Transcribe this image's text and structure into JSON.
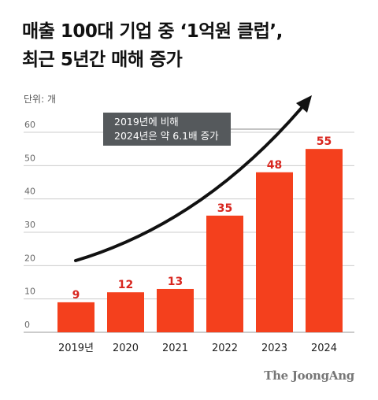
{
  "title_lines": [
    "매출 100대 기업 중 ‘1억원 클럽’,",
    "최근 5년간 매해 증가"
  ],
  "unit_label": "단위: 개",
  "annotation_lines": [
    "2019년에 비해",
    "2024년은 약 6.1배 증가"
  ],
  "credit": "The JoongAng",
  "colors": {
    "bar": "#f4401d",
    "value_label": "#d8261f",
    "grid": "#cccccc",
    "arrow": "#111111",
    "annotation_bg": "#55595c"
  },
  "chart_data": {
    "type": "bar",
    "title": "매출 100대 기업 중 ‘1억원 클럽’, 최근 5년간 매해 증가",
    "ylabel": "단위: 개",
    "categories": [
      "2019년",
      "2020",
      "2021",
      "2022",
      "2023",
      "2024"
    ],
    "values": [
      9,
      12,
      13,
      35,
      48,
      55
    ],
    "yticks": [
      0,
      10,
      20,
      30,
      40,
      50,
      60
    ],
    "ylim": [
      0,
      60
    ],
    "grid": true,
    "data_labels": true
  }
}
